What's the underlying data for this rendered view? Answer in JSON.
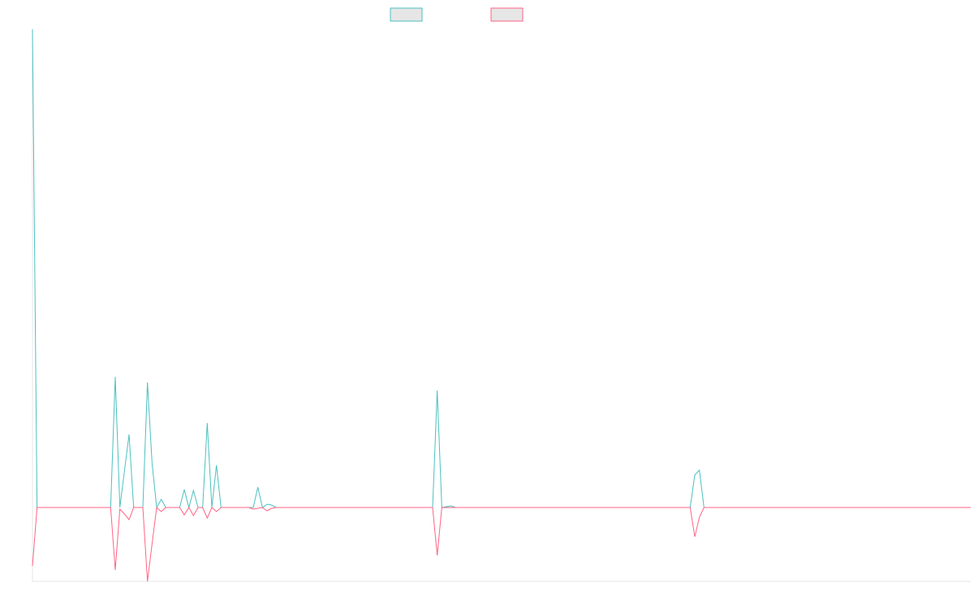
{
  "chart_data": {
    "type": "line",
    "x": [
      0,
      1,
      16,
      17,
      18,
      19,
      20,
      21,
      22,
      23,
      24,
      25,
      26,
      27,
      28,
      29,
      31,
      32,
      33,
      34,
      35,
      36,
      37,
      38,
      39,
      40,
      41,
      47,
      48,
      49,
      50,
      51,
      52,
      53,
      87,
      88,
      89,
      90,
      91,
      92,
      143,
      144,
      145,
      146,
      204
    ],
    "xlim": [
      0,
      204
    ],
    "ylim": [
      -91,
      589
    ],
    "series": [
      {
        "color": "#4bc0c0",
        "values": [
          589,
          0,
          0,
          0,
          161,
          0,
          45,
          90,
          0,
          0,
          0,
          154,
          55,
          0,
          10,
          0,
          0,
          0,
          22,
          0,
          21,
          0,
          0,
          104,
          0,
          52,
          0,
          0,
          0,
          25,
          0,
          4,
          3,
          0,
          0,
          144,
          0,
          1,
          2,
          0,
          0,
          40,
          46,
          0,
          0
        ]
      },
      {
        "color": "#ff6384",
        "values": [
          -72,
          0,
          0,
          0,
          -77,
          -2,
          -8,
          -15,
          0,
          0,
          0,
          -91,
          -45,
          0,
          -5,
          0,
          0,
          0,
          -9,
          0,
          -10,
          0,
          0,
          -13,
          0,
          -5,
          0,
          0,
          -2,
          -1,
          0,
          -4,
          -1,
          0,
          0,
          -59,
          0,
          0,
          0,
          0,
          0,
          -36,
          -12,
          0,
          0
        ]
      }
    ]
  }
}
